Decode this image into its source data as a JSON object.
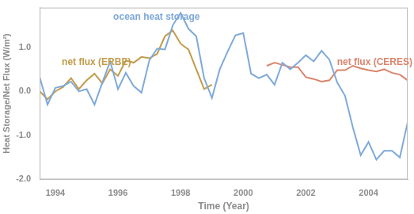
{
  "chart_data": {
    "type": "line",
    "x_label": "Time (Year)",
    "y_label": "Heat Storage/Net Flux (W/m²)",
    "x": [
      1993.5,
      1993.75,
      1994.0,
      1994.25,
      1994.5,
      1994.75,
      1995.0,
      1995.25,
      1995.5,
      1995.75,
      1996.0,
      1996.25,
      1996.5,
      1996.75,
      1997.0,
      1997.25,
      1997.5,
      1997.75,
      1998.0,
      1998.25,
      1998.5,
      1998.75,
      1999.0,
      1999.25,
      1999.5,
      1999.75,
      2000.0,
      2000.25,
      2000.5,
      2000.75,
      2001.0,
      2001.25,
      2001.5,
      2001.75,
      2002.0,
      2002.25,
      2002.5,
      2002.75,
      2003.0,
      2003.25,
      2003.5,
      2003.75,
      2004.0,
      2004.25,
      2004.5,
      2004.75,
      2005.0,
      2005.25
    ],
    "series": [
      {
        "name": "ocean heat storage",
        "color": "#7fa9d9",
        "values": [
          0.32,
          -0.3,
          0.08,
          0.12,
          0.22,
          0.0,
          0.05,
          -0.3,
          0.2,
          0.68,
          0.05,
          0.42,
          0.12,
          -0.03,
          0.7,
          0.97,
          0.95,
          1.5,
          1.78,
          1.42,
          1.25,
          0.3,
          -0.15,
          0.5,
          0.9,
          1.27,
          1.32,
          0.4,
          0.3,
          0.38,
          0.15,
          0.65,
          0.5,
          0.65,
          0.82,
          0.68,
          0.92,
          0.72,
          0.2,
          -0.1,
          -0.82,
          -1.45,
          -1.15,
          -1.55,
          -1.35,
          -1.35,
          -1.5,
          -0.7
        ]
      },
      {
        "name": "net flux (ERBE)",
        "color": "#c39b4a",
        "values": [
          0.0,
          -0.18,
          0.0,
          0.1,
          0.3,
          0.05,
          0.25,
          0.4,
          0.18,
          0.5,
          0.35,
          0.7,
          0.65,
          0.78,
          0.75,
          0.85,
          1.25,
          1.38,
          1.08,
          0.95,
          0.5,
          0.05,
          0.15,
          null,
          null,
          null,
          null,
          null,
          null,
          null,
          null,
          null,
          null,
          null,
          null,
          null,
          null,
          null,
          null,
          null,
          null,
          null,
          null,
          null,
          null,
          null,
          null,
          null
        ]
      },
      {
        "name": "net flux (CERES)",
        "color": "#da846c",
        "values": [
          null,
          null,
          null,
          null,
          null,
          null,
          null,
          null,
          null,
          null,
          null,
          null,
          null,
          null,
          null,
          null,
          null,
          null,
          null,
          null,
          null,
          null,
          null,
          null,
          null,
          null,
          null,
          null,
          null,
          0.58,
          0.65,
          0.6,
          0.55,
          0.55,
          0.32,
          0.28,
          0.22,
          0.25,
          0.48,
          0.48,
          0.58,
          0.52,
          0.48,
          0.45,
          0.5,
          0.42,
          0.38,
          0.25
        ]
      }
    ],
    "xlim": [
      1993.5,
      2005.25
    ],
    "xticks": [
      1994,
      1996,
      1998,
      2000,
      2002,
      2004
    ],
    "ylim": [
      -2.0,
      1.9
    ],
    "yticks": [
      {
        "value": -2.0,
        "label": "-2.0"
      },
      {
        "value": -1.0,
        "label": "-1.0"
      },
      {
        "value": 0.0,
        "label": "0.0"
      },
      {
        "value": 1.0,
        "label": "1.0"
      }
    ],
    "grid": false
  }
}
